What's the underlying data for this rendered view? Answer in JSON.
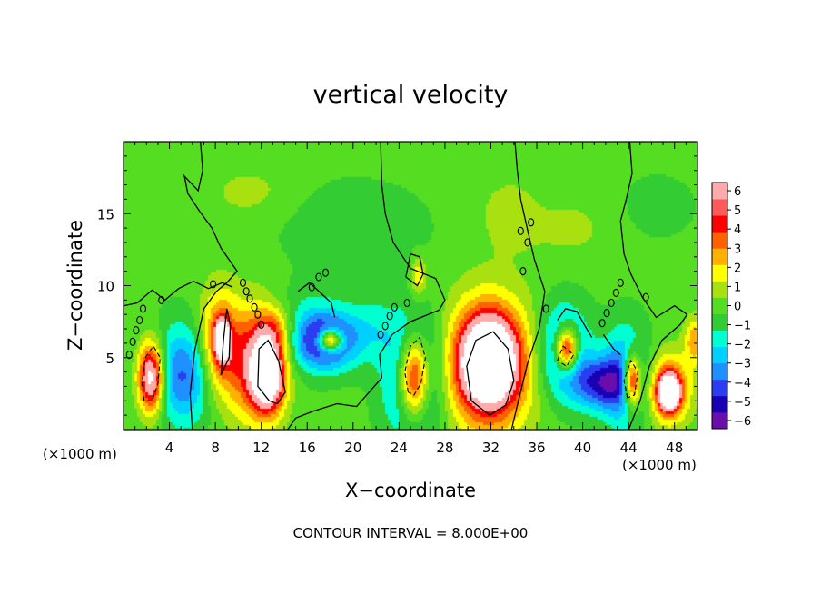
{
  "chart_data": {
    "type": "heatmap",
    "title": "vertical velocity",
    "xlabel": "X−coordinate",
    "ylabel": "Z−coordinate",
    "x_unit_left": "(×1000 m)",
    "x_unit_right": "(×1000 m)",
    "footer": "CONTOUR INTERVAL = 8.000E+00",
    "xlim": [
      0,
      50
    ],
    "ylim": [
      0,
      20
    ],
    "x_ticks": [
      4,
      8,
      12,
      16,
      20,
      24,
      28,
      32,
      36,
      40,
      44,
      48
    ],
    "x_tick_labels": [
      "4",
      "8",
      "12",
      "16",
      "20",
      "24",
      "28",
      "32",
      "36",
      "40",
      "44",
      "48"
    ],
    "y_ticks": [
      5,
      10,
      15
    ],
    "y_tick_labels": [
      "5",
      "10",
      "15"
    ],
    "colorbar": {
      "levels": [
        -6,
        -5,
        -4,
        -3,
        -2,
        -1,
        0,
        1,
        2,
        3,
        4,
        5,
        6
      ],
      "labels": [
        "−6",
        "−5",
        "−4",
        "−3",
        "−2",
        "−1",
        "0",
        "1",
        "2",
        "3",
        "4",
        "5",
        "6"
      ],
      "colors": [
        "#6a0dad",
        "#1a00b4",
        "#2b3df0",
        "#1e90ff",
        "#00d0ff",
        "#00ffd0",
        "#33cc33",
        "#55dd22",
        "#a8e010",
        "#ffff00",
        "#ffb000",
        "#ff6000",
        "#ff0000",
        "#ff5a5a",
        "#ffaaaa"
      ],
      "saturated_color": "#ffffff"
    },
    "background_value": 0.3,
    "features": [
      {
        "x": 5.2,
        "y": 3.8,
        "value": -4.5,
        "rx": 2.6,
        "ry": 3.4
      },
      {
        "x": 2.4,
        "y": 3.6,
        "value": 9.0,
        "rx": 1.1,
        "ry": 2.4
      },
      {
        "x": 8.3,
        "y": 6.0,
        "value": 4.8,
        "rx": 1.7,
        "ry": 3.6
      },
      {
        "x": 8.6,
        "y": 6.2,
        "value": 9.0,
        "rx": 0.6,
        "ry": 1.3
      },
      {
        "x": 11.4,
        "y": 4.6,
        "value": 5.2,
        "rx": 2.4,
        "ry": 4.0
      },
      {
        "x": 12.6,
        "y": 3.8,
        "value": 9.0,
        "rx": 1.4,
        "ry": 2.4
      },
      {
        "x": 13.2,
        "y": 7.0,
        "value": 3.2,
        "rx": 1.8,
        "ry": 1.6
      },
      {
        "x": 16.0,
        "y": 6.8,
        "value": -2.6,
        "rx": 3.4,
        "ry": 2.6
      },
      {
        "x": 17.8,
        "y": 6.1,
        "value": -5.2,
        "rx": 2.4,
        "ry": 1.8
      },
      {
        "x": 18.0,
        "y": 6.2,
        "value": 9.0,
        "rx": 1.1,
        "ry": 0.8
      },
      {
        "x": 21.5,
        "y": 7.0,
        "value": -1.6,
        "rx": 2.4,
        "ry": 2.2
      },
      {
        "x": 25.3,
        "y": 3.6,
        "value": -5.0,
        "rx": 2.5,
        "ry": 4.4
      },
      {
        "x": 25.3,
        "y": 3.6,
        "value": 9.0,
        "rx": 1.3,
        "ry": 2.8
      },
      {
        "x": 25.7,
        "y": 10.6,
        "value": 2.8,
        "rx": 0.7,
        "ry": 1.3
      },
      {
        "x": 31.8,
        "y": 4.4,
        "value": 5.4,
        "rx": 4.0,
        "ry": 4.8
      },
      {
        "x": 31.8,
        "y": 4.8,
        "value": 9.0,
        "rx": 2.4,
        "ry": 3.0
      },
      {
        "x": 38.3,
        "y": 5.4,
        "value": -4.8,
        "rx": 2.2,
        "ry": 3.2
      },
      {
        "x": 38.6,
        "y": 5.6,
        "value": 9.0,
        "rx": 1.0,
        "ry": 1.5
      },
      {
        "x": 41.5,
        "y": 3.2,
        "value": -5.0,
        "rx": 2.2,
        "ry": 1.8
      },
      {
        "x": 43.8,
        "y": 3.6,
        "value": -4.6,
        "rx": 1.9,
        "ry": 3.4
      },
      {
        "x": 44.3,
        "y": 3.4,
        "value": 9.0,
        "rx": 0.8,
        "ry": 1.9
      },
      {
        "x": 47.5,
        "y": 2.8,
        "value": 5.0,
        "rx": 1.9,
        "ry": 2.4
      },
      {
        "x": 47.5,
        "y": 2.6,
        "value": 9.0,
        "rx": 0.9,
        "ry": 1.2
      },
      {
        "x": 49.8,
        "y": 6.2,
        "value": 3.5,
        "rx": 0.9,
        "ry": 1.6
      },
      {
        "x": 20.0,
        "y": 14.0,
        "value": -1.2,
        "rx": 6.0,
        "ry": 3.0
      },
      {
        "x": 11.0,
        "y": 16.5,
        "value": 1.0,
        "rx": 4.0,
        "ry": 2.0
      },
      {
        "x": 39.0,
        "y": 14.0,
        "value": 0.9,
        "rx": 4.0,
        "ry": 2.5
      },
      {
        "x": 46.5,
        "y": 15.5,
        "value": -1.0,
        "rx": 3.0,
        "ry": 2.0
      },
      {
        "x": 33.5,
        "y": 15.0,
        "value": 1.2,
        "rx": 2.5,
        "ry": 2.5
      }
    ],
    "zero_contours": [
      [
        [
          6.0,
          0
        ],
        [
          5.8,
          2.5
        ],
        [
          6.2,
          5.5
        ],
        [
          7.0,
          8.4
        ],
        [
          8.1,
          9.6
        ],
        [
          9.0,
          10.2
        ],
        [
          9.9,
          11.0
        ],
        [
          8.5,
          12.6
        ],
        [
          7.7,
          14.0
        ],
        [
          6.6,
          15.2
        ],
        [
          5.6,
          16.4
        ],
        [
          5.3,
          17.6
        ],
        [
          6.5,
          16.6
        ],
        [
          6.9,
          18.0
        ],
        [
          6.7,
          20
        ]
      ],
      [
        [
          14.3,
          0
        ],
        [
          15.0,
          0.8
        ],
        [
          16.6,
          1.3
        ],
        [
          18.6,
          1.8
        ],
        [
          20.3,
          1.6
        ],
        [
          21.4,
          2.6
        ],
        [
          22.5,
          3.6
        ],
        [
          22.3,
          5.2
        ],
        [
          23.4,
          6.6
        ],
        [
          25.0,
          7.5
        ],
        [
          27.5,
          8.3
        ],
        [
          28.0,
          9.0
        ],
        [
          27.2,
          10.5
        ],
        [
          25.0,
          11.2
        ],
        [
          23.5,
          13.0
        ],
        [
          22.8,
          15.0
        ],
        [
          22.5,
          17.0
        ],
        [
          22.4,
          20
        ]
      ],
      [
        [
          33.8,
          0
        ],
        [
          34.4,
          2.0
        ],
        [
          35.2,
          4.6
        ],
        [
          36.2,
          7.0
        ],
        [
          36.7,
          9.6
        ],
        [
          35.8,
          11.8
        ],
        [
          35.3,
          13.5
        ],
        [
          34.6,
          16.0
        ],
        [
          34.3,
          18.0
        ],
        [
          34.1,
          20
        ]
      ],
      [
        [
          44.0,
          0
        ],
        [
          45.0,
          2.0
        ],
        [
          45.8,
          4.4
        ],
        [
          46.9,
          6.2
        ],
        [
          48.5,
          7.3
        ],
        [
          49.1,
          8.0
        ],
        [
          48.0,
          8.6
        ],
        [
          46.4,
          7.8
        ],
        [
          45.2,
          9.2
        ],
        [
          44.2,
          10.8
        ],
        [
          43.6,
          12.2
        ],
        [
          43.3,
          14.5
        ],
        [
          43.8,
          16.0
        ],
        [
          44.3,
          17.8
        ],
        [
          44.1,
          20
        ]
      ],
      [
        [
          0.0,
          8.6
        ],
        [
          1.2,
          8.8
        ],
        [
          2.5,
          9.7
        ],
        [
          3.6,
          9.0
        ],
        [
          4.8,
          9.8
        ],
        [
          6.1,
          10.3
        ],
        [
          7.4,
          9.8
        ],
        [
          8.6,
          10.2
        ],
        [
          9.5,
          9.9
        ]
      ],
      [
        [
          15.2,
          9.6
        ],
        [
          16.2,
          10.2
        ],
        [
          17.3,
          9.4
        ],
        [
          18.1,
          8.8
        ],
        [
          18.4,
          7.8
        ]
      ],
      [
        [
          24.6,
          10.6
        ],
        [
          25.0,
          12.2
        ],
        [
          25.8,
          12.0
        ],
        [
          26.1,
          10.8
        ],
        [
          25.6,
          10.0
        ],
        [
          24.6,
          10.6
        ]
      ],
      [
        [
          37.8,
          7.6
        ],
        [
          38.5,
          8.4
        ],
        [
          39.5,
          8.2
        ],
        [
          40.2,
          7.2
        ],
        [
          40.8,
          6.4
        ]
      ],
      [
        [
          41.8,
          6.6
        ],
        [
          42.7,
          5.6
        ],
        [
          43.3,
          5.2
        ]
      ],
      [
        [
          8.5,
          3.8
        ],
        [
          8.7,
          6.2
        ],
        [
          9.0,
          8.4
        ],
        [
          9.3,
          7.2
        ],
        [
          9.2,
          5.0
        ],
        [
          8.5,
          3.8
        ]
      ],
      [
        [
          12.7,
          2.0
        ],
        [
          11.7,
          3.0
        ],
        [
          11.8,
          5.6
        ],
        [
          12.6,
          6.2
        ],
        [
          13.5,
          4.8
        ],
        [
          14.1,
          2.6
        ],
        [
          13.4,
          1.8
        ],
        [
          12.7,
          2.0
        ]
      ],
      [
        [
          31.9,
          1.0
        ],
        [
          30.3,
          2.0
        ],
        [
          29.9,
          4.4
        ],
        [
          30.7,
          6.2
        ],
        [
          32.2,
          6.8
        ],
        [
          33.5,
          5.6
        ],
        [
          34.0,
          3.4
        ],
        [
          33.3,
          1.7
        ],
        [
          31.9,
          1.0
        ]
      ]
    ],
    "negative_contours": [
      [
        [
          1.8,
          2.0
        ],
        [
          1.6,
          3.2
        ],
        [
          1.9,
          5.0
        ],
        [
          2.6,
          5.8
        ],
        [
          3.2,
          5.0
        ],
        [
          3.0,
          3.2
        ],
        [
          2.5,
          2.0
        ],
        [
          1.8,
          2.0
        ]
      ],
      [
        [
          24.8,
          2.6
        ],
        [
          24.5,
          4.0
        ],
        [
          25.0,
          5.8
        ],
        [
          25.8,
          6.4
        ],
        [
          26.3,
          5.0
        ],
        [
          25.9,
          3.2
        ],
        [
          25.3,
          2.4
        ],
        [
          24.8,
          2.6
        ]
      ],
      [
        [
          37.8,
          4.8
        ],
        [
          38.3,
          5.8
        ],
        [
          39.2,
          5.2
        ],
        [
          38.6,
          4.4
        ],
        [
          37.8,
          4.8
        ]
      ],
      [
        [
          43.9,
          2.2
        ],
        [
          43.6,
          3.4
        ],
        [
          44.2,
          4.8
        ],
        [
          44.8,
          4.0
        ],
        [
          44.5,
          2.4
        ],
        [
          43.9,
          2.2
        ]
      ]
    ],
    "small_contour_loops": [
      [
        0.5,
        5.2
      ],
      [
        0.8,
        6.1
      ],
      [
        1.1,
        6.9
      ],
      [
        1.4,
        7.6
      ],
      [
        1.7,
        8.4
      ],
      [
        10.4,
        10.2
      ],
      [
        10.7,
        9.6
      ],
      [
        11.0,
        9.1
      ],
      [
        11.4,
        8.5
      ],
      [
        11.7,
        8.0
      ],
      [
        12.0,
        7.3
      ],
      [
        22.4,
        6.6
      ],
      [
        22.8,
        7.2
      ],
      [
        23.2,
        7.9
      ],
      [
        23.6,
        8.5
      ],
      [
        34.6,
        13.8
      ],
      [
        35.2,
        13.0
      ],
      [
        35.5,
        14.4
      ],
      [
        41.7,
        7.4
      ],
      [
        42.1,
        8.1
      ],
      [
        42.5,
        8.8
      ],
      [
        42.9,
        9.5
      ],
      [
        43.3,
        10.2
      ],
      [
        36.8,
        8.4
      ],
      [
        16.4,
        9.9
      ],
      [
        17.0,
        10.6
      ],
      [
        17.6,
        10.9
      ],
      [
        3.3,
        9.0
      ],
      [
        7.8,
        10.1
      ],
      [
        24.7,
        8.8
      ],
      [
        45.5,
        9.2
      ],
      [
        34.8,
        11.0
      ]
    ]
  }
}
